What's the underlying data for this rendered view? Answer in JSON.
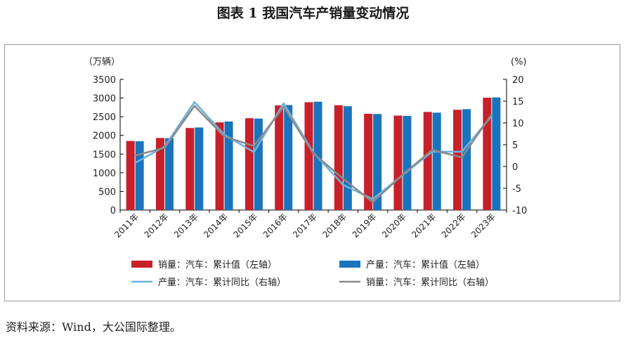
{
  "figure_title": "图表 1  我国汽车产销量变动情况",
  "source_note": "资料来源：Wind，大公国际整理。",
  "colors": {
    "sales_bar": "#c8202a",
    "production_bar": "#1a73bd",
    "production_yoy_line": "#6fb3dc",
    "sales_yoy_line": "#8a8a8a"
  },
  "chart_data": {
    "type": "bar",
    "title": "",
    "categories": [
      "2011年",
      "2012年",
      "2013年",
      "2014年",
      "2015年",
      "2016年",
      "2017年",
      "2018年",
      "2019年",
      "2020年",
      "2021年",
      "2022年",
      "2023年"
    ],
    "y_left": {
      "unit_label": "（万辆）",
      "ylim": [
        0,
        3500
      ],
      "ticks": [
        0,
        500,
        1000,
        1500,
        2000,
        2500,
        3000,
        3500
      ]
    },
    "y_right": {
      "unit_label": "(%)",
      "ylim": [
        -10,
        20
      ],
      "ticks": [
        -10,
        -5,
        0,
        5,
        10,
        15,
        20
      ]
    },
    "grid": false,
    "legend_position": "bottom",
    "series": [
      {
        "name": "销量：汽车：累计值（左轴）",
        "kind": "bar",
        "axis": "left",
        "color": "#c8202a",
        "values": [
          1850,
          1930,
          2198,
          2349,
          2460,
          2803,
          2888,
          2808,
          2577,
          2531,
          2628,
          2686,
          3009
        ]
      },
      {
        "name": "产量：汽车：累计值（左轴）",
        "kind": "bar",
        "axis": "left",
        "color": "#1a73bd",
        "values": [
          1842,
          1927,
          2212,
          2372,
          2450,
          2812,
          2902,
          2781,
          2572,
          2523,
          2608,
          2702,
          3016
        ]
      },
      {
        "name": "产量：汽车：累计同比（右轴）",
        "kind": "line",
        "axis": "right",
        "color": "#6fb3dc",
        "values": [
          0.8,
          4.6,
          14.8,
          7.3,
          3.3,
          14.5,
          3.2,
          -4.2,
          -7.5,
          -2.0,
          3.4,
          3.4,
          11.6
        ]
      },
      {
        "name": "销量：汽车：累计同比（右轴）",
        "kind": "line",
        "axis": "right",
        "color": "#8a8a8a",
        "values": [
          2.5,
          4.3,
          13.9,
          6.9,
          4.7,
          13.7,
          3.0,
          -2.8,
          -8.2,
          -1.9,
          3.8,
          2.1,
          12.0
        ]
      }
    ]
  }
}
